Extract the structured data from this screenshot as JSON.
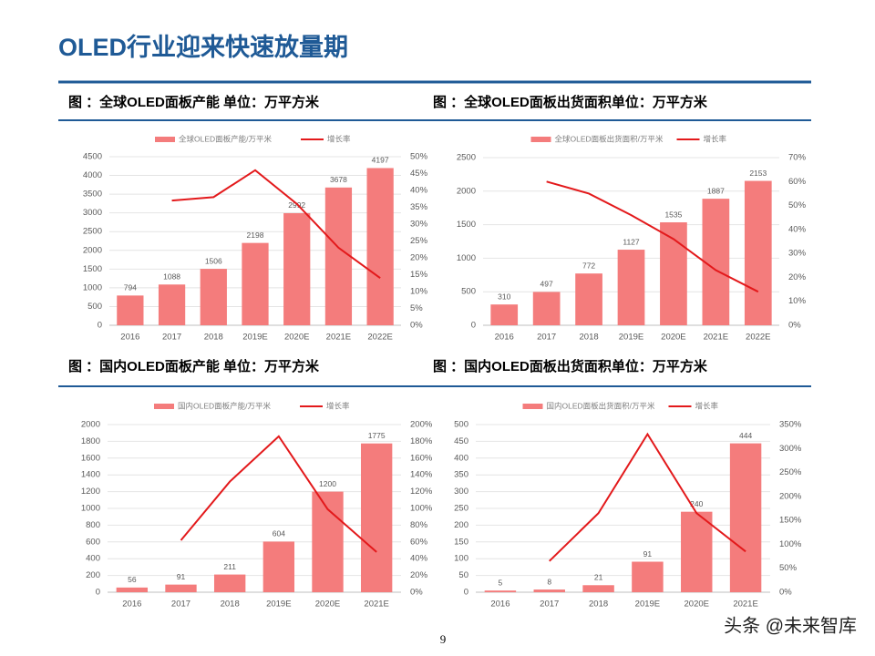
{
  "slide": {
    "title": "OLED行业迎来快速放量期",
    "page_number": "9",
    "watermark": "头条 @未来智库"
  },
  "chart_data": [
    {
      "type": "bar",
      "title": "图 ：全球OLED面板产能   单位：万平方米",
      "categories": [
        "2016",
        "2017",
        "2018",
        "2019E",
        "2020E",
        "2021E",
        "2022E"
      ],
      "series": [
        {
          "name": "全球OLED面板产能/万平米",
          "color": "#f47c7c",
          "values": [
            794,
            1088,
            1506,
            2198,
            2992,
            3678,
            4197
          ]
        },
        {
          "name": "增长率",
          "color": "#e3191b",
          "axis": "y2",
          "values": [
            null,
            37,
            38,
            46,
            36,
            23,
            14
          ]
        }
      ],
      "ylim": [
        0,
        4500
      ],
      "yticks": [
        0,
        500,
        1000,
        1500,
        2000,
        2500,
        3000,
        3500,
        4000,
        4500
      ],
      "y2lim": [
        0,
        50
      ],
      "y2ticks": [
        {
          "value": 0,
          "label": "0%"
        },
        {
          "value": 5,
          "label": "5%"
        },
        {
          "value": 10,
          "label": "10%"
        },
        {
          "value": 15,
          "label": "15%"
        },
        {
          "value": 20,
          "label": "20%"
        },
        {
          "value": 25,
          "label": "25%"
        },
        {
          "value": 30,
          "label": "30%"
        },
        {
          "value": 35,
          "label": "35%"
        },
        {
          "value": 40,
          "label": "40%"
        },
        {
          "value": 45,
          "label": "45%"
        },
        {
          "value": 50,
          "label": "50%"
        }
      ],
      "grid": true
    },
    {
      "type": "bar",
      "title": "图 ：全球OLED面板出货面积单位：万平方米",
      "categories": [
        "2016",
        "2017",
        "2018",
        "2019E",
        "2020E",
        "2021E",
        "2022E"
      ],
      "series": [
        {
          "name": "全球OLED面板出货面积/万平米",
          "color": "#f47c7c",
          "values": [
            310,
            497,
            772,
            1127,
            1535,
            1887,
            2153
          ]
        },
        {
          "name": "增长率",
          "color": "#e3191b",
          "axis": "y2",
          "values": [
            null,
            60,
            55,
            46,
            36,
            23,
            14
          ]
        }
      ],
      "ylim": [
        0,
        2500
      ],
      "yticks": [
        0,
        500,
        1000,
        1500,
        2000,
        2500
      ],
      "y2lim": [
        0,
        70
      ],
      "y2ticks": [
        {
          "value": 0,
          "label": "0%"
        },
        {
          "value": 10,
          "label": "10%"
        },
        {
          "value": 20,
          "label": "20%"
        },
        {
          "value": 30,
          "label": "30%"
        },
        {
          "value": 40,
          "label": "40%"
        },
        {
          "value": 50,
          "label": "50%"
        },
        {
          "value": 60,
          "label": "60%"
        },
        {
          "value": 70,
          "label": "70%"
        }
      ],
      "grid": true
    },
    {
      "type": "bar",
      "title": "图 ：国内OLED面板产能   单位：万平方米",
      "categories": [
        "2016",
        "2017",
        "2018",
        "2019E",
        "2020E",
        "2021E"
      ],
      "series": [
        {
          "name": "国内OLED面板产能/万平米",
          "color": "#f47c7c",
          "values": [
            56,
            91,
            211,
            604,
            1200,
            1775
          ]
        },
        {
          "name": "增长率",
          "color": "#e3191b",
          "axis": "y2",
          "values": [
            null,
            62,
            132,
            186,
            99,
            48
          ]
        }
      ],
      "ylim": [
        0,
        2000
      ],
      "yticks": [
        0,
        200,
        400,
        600,
        800,
        1000,
        1200,
        1400,
        1600,
        1800,
        2000
      ],
      "y2lim": [
        0,
        200
      ],
      "y2ticks": [
        {
          "value": 0,
          "label": "0%"
        },
        {
          "value": 20,
          "label": "20%"
        },
        {
          "value": 40,
          "label": "40%"
        },
        {
          "value": 60,
          "label": "60%"
        },
        {
          "value": 80,
          "label": "80%"
        },
        {
          "value": 100,
          "label": "100%"
        },
        {
          "value": 120,
          "label": "120%"
        },
        {
          "value": 140,
          "label": "140%"
        },
        {
          "value": 160,
          "label": "160%"
        },
        {
          "value": 180,
          "label": "180%"
        },
        {
          "value": 200,
          "label": "200%"
        }
      ],
      "grid": true
    },
    {
      "type": "bar",
      "title": "图 ：国内OLED面板出货面积单位：万平方米",
      "categories": [
        "2016",
        "2017",
        "2018",
        "2019E",
        "2020E",
        "2021E"
      ],
      "series": [
        {
          "name": "国内OLED面板出货面积/万平米",
          "color": "#f47c7c",
          "values": [
            5,
            8,
            21,
            91,
            240,
            444
          ]
        },
        {
          "name": "增长率",
          "color": "#e3191b",
          "axis": "y2",
          "values": [
            null,
            65,
            165,
            330,
            165,
            85
          ]
        }
      ],
      "ylim": [
        0,
        500
      ],
      "yticks": [
        0,
        50,
        100,
        150,
        200,
        250,
        300,
        350,
        400,
        450,
        500
      ],
      "y2lim": [
        0,
        350
      ],
      "y2ticks": [
        {
          "value": 0,
          "label": "0%"
        },
        {
          "value": 50,
          "label": "50%"
        },
        {
          "value": 100,
          "label": "100%"
        },
        {
          "value": 150,
          "label": "150%"
        },
        {
          "value": 200,
          "label": "200%"
        },
        {
          "value": 250,
          "label": "250%"
        },
        {
          "value": 300,
          "label": "300%"
        },
        {
          "value": 350,
          "label": "350%"
        }
      ],
      "grid": true
    }
  ]
}
